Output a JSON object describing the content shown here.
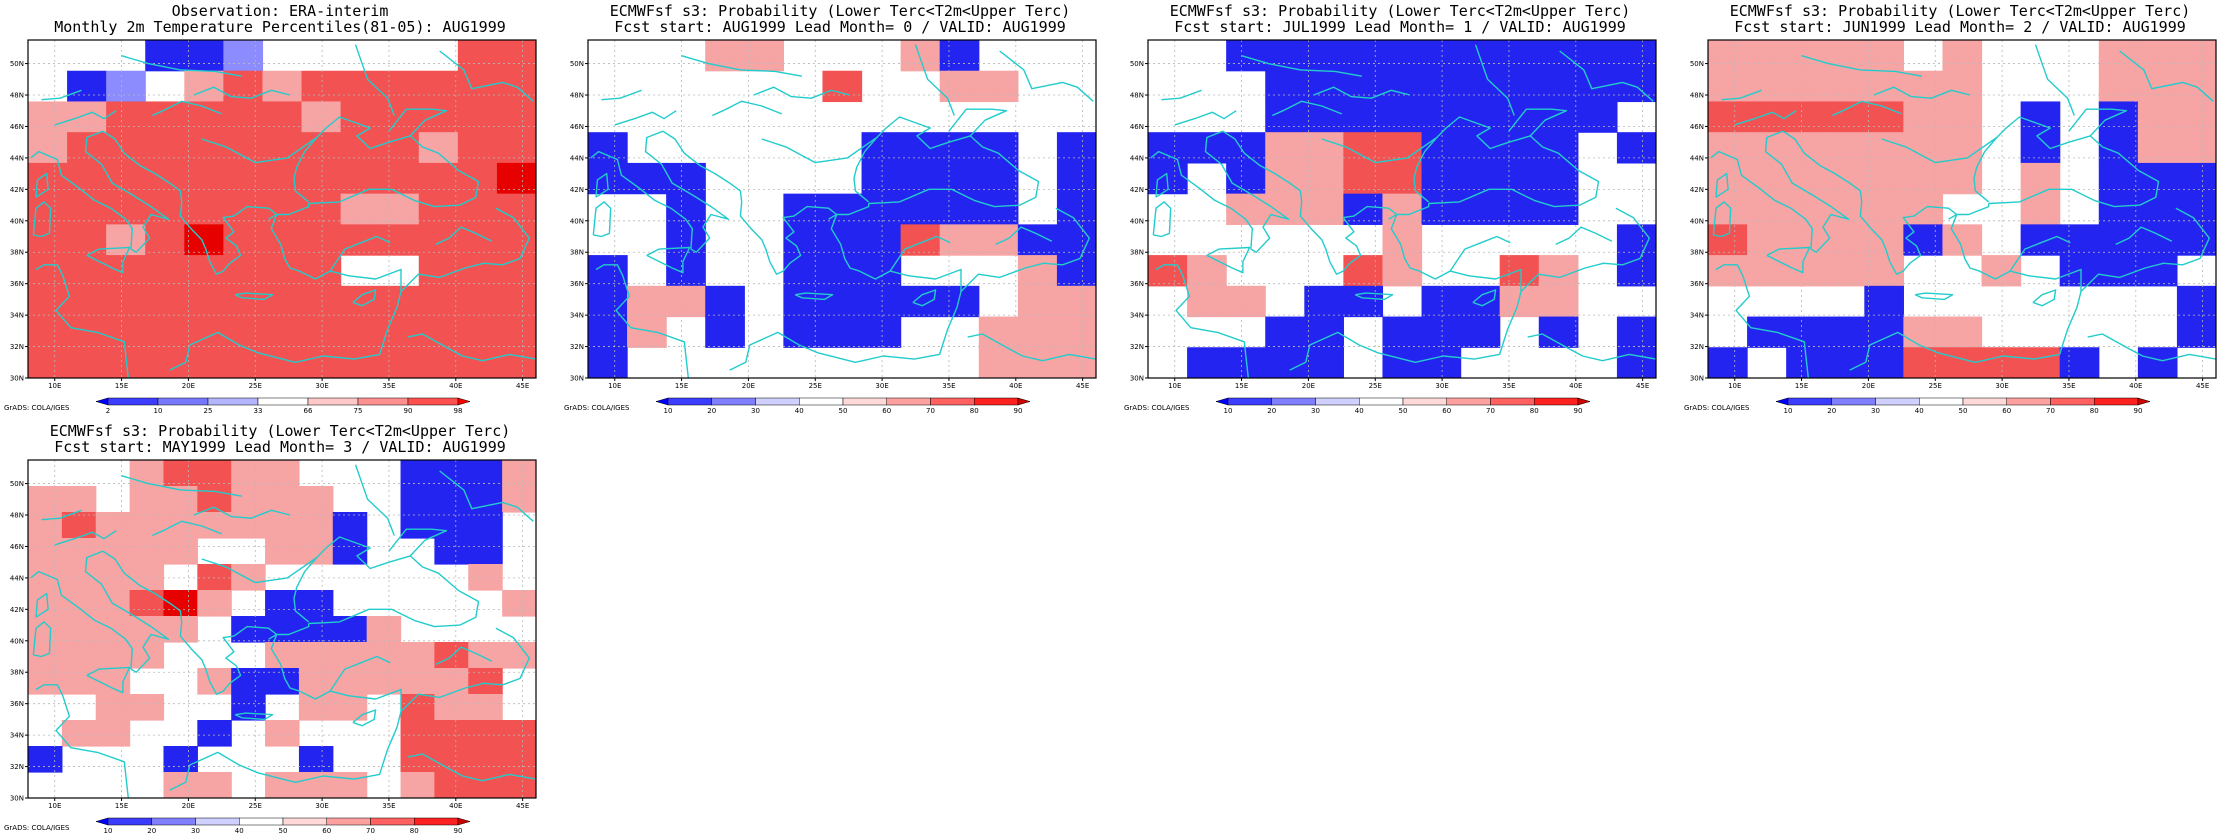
{
  "panels": [
    {
      "id": "obs",
      "title_line1": "Observation: ERA-interim",
      "title_line2": "Monthly 2m Temperature Percentiles(81-05): AUG1999",
      "credit": "GrADS: COLA/IGES",
      "legend_type": "percentile",
      "grid": [
        "000BBb00000RR",
        "0Bb0rRrRRRRRR",
        "rrRRRRRrRRRRR",
        "rRRRRRRRRRrRR",
        "RRRRRRRRRRRRF",
        "RRRRRRRRrrRRR",
        "RRrRFRRRRRRRR",
        "RRRRRRRR00RRR",
        "RRRRRRRRRRRRR",
        "RRRRRRRRRRRRR",
        "RRRRRRRRRRRRR"
      ]
    },
    {
      "id": "lead0",
      "title_line1": "ECMWFsf s3: Probability (Lower Terc<T2m<Upper Terc)",
      "title_line2": "Fcst start: AUG1999   Lead Month= 0 / VALID: AUG1999",
      "credit": "GrADS: COLA/IGES",
      "legend_type": "probability",
      "grid": [
        "000rr000rB000",
        "000000R00rr00",
        "0000000000000",
        "B000000BBBB0B",
        "BBB0000BBBB0B",
        "00B00BBBBBB0B",
        "00B00BBBRrrBB",
        "B0B00BBB000rB",
        "BrrB0BBBBB0rr",
        "Br0B0BBB00rrr",
        "B000000000rrr"
      ]
    },
    {
      "id": "lead1",
      "title_line1": "ECMWFsf s3: Probability (Lower Terc<T2m<Upper Terc)",
      "title_line2": "Fcst start: JUL1999   Lead Month= 1 / VALID: AUG1999",
      "credit": "GrADS: COLA/IGES",
      "legend_type": "probability",
      "grid": [
        "00BBBBBBBBBBB",
        "000BBBBBBBBBB",
        "000BBBBBBBBB0",
        "BBBrrRRBBBB0B",
        "B0BrrRRBBBB00",
        "00rrrBrBBBB00",
        "000000r00000B",
        "Rr000Rr00Rr0B",
        "0rr0BB0BBrr00",
        "000BB0BBB0B0B",
        "0BBBB0BB0000B"
      ]
    },
    {
      "id": "lead2",
      "title_line1": "ECMWFsf s3: Probability (Lower Terc<T2m<Upper Terc)",
      "title_line2": "Fcst start: JUN1999   Lead Month= 2 / VALID: AUG1999",
      "credit": "GrADS: COLA/IGES",
      "legend_type": "probability",
      "grid": [
        "rrrrr0r000rrr",
        "rrrrrrr000rrr",
        "RRRRRrr0B0Brr",
        "rrrrrrr0B0Brr",
        "rrrrrrr0r0BBB",
        "rrrrrr00r0BBB",
        "RrrrrBr0BBBBB",
        "rrrrr00r0BBB0",
        "0000B0000000B",
        "0BBBBrr00000B",
        "B0BBBRRRRB0B0"
      ]
    },
    {
      "id": "lead3",
      "title_line1": "ECMWFsf s3: Probability (Lower Terc<T2m<Upper Terc)",
      "title_line2": "Fcst start: MAY1999   Lead Month= 3 / VALID: AUG1999",
      "credit": "GrADS: COLA/IGES",
      "legend_type": "probability",
      "grid": [
        "000rRRrr000BBBr",
        "rr0rrRrrr00BBBr",
        "rRrrrrrrrB0BBB0",
        "rrrrr00rrB00BB0",
        "rrrr0Rr000000r0",
        "rrrRFr0BB00000r",
        "rrrrr0BBBBr0000",
        "rrrr000rrrrrRrr",
        "rrr00rBBrrrrrR0",
        "00rr00B0rr0Rrr0",
        "0rr00B0r000RRRR",
        "B000B000B00RRRR",
        "0000rr0rrr0rRRR"
      ]
    }
  ],
  "axes": {
    "lat_labels": [
      "30N",
      "32N",
      "34N",
      "36N",
      "38N",
      "40N",
      "42N",
      "44N",
      "46N",
      "48N",
      "50N"
    ],
    "lon_labels": [
      "10E",
      "15E",
      "20E",
      "25E",
      "30E",
      "35E",
      "40E",
      "45E"
    ]
  },
  "legends": {
    "percentile": {
      "labels": [
        "2",
        "10",
        "25",
        "33",
        "66",
        "75",
        "90",
        "98"
      ],
      "colors": [
        "#0000ff",
        "#3c3cff",
        "#7878ff",
        "#b4b4ff",
        "#ffffff",
        "#ffc8c8",
        "#ff9090",
        "#ff5050",
        "#ff0000"
      ]
    },
    "probability": {
      "labels": [
        "10",
        "20",
        "30",
        "40",
        "50",
        "60",
        "70",
        "80",
        "90"
      ],
      "colors": [
        "#0000ff",
        "#3c3cff",
        "#8080ff",
        "#d0d0ff",
        "#ffffff",
        "#ffd8d8",
        "#ffa0a0",
        "#ff6060",
        "#ff2020",
        "#d00000"
      ]
    }
  },
  "palette": {
    "B": "#2424f0",
    "b": "#8c8cff",
    "0": "#ffffff",
    "r": "#f7a4a4",
    "R": "#f25252",
    "F": "#e60000",
    "coast": "#22cccc",
    "frame": "#000000",
    "gridline": "#b8b8b8"
  }
}
